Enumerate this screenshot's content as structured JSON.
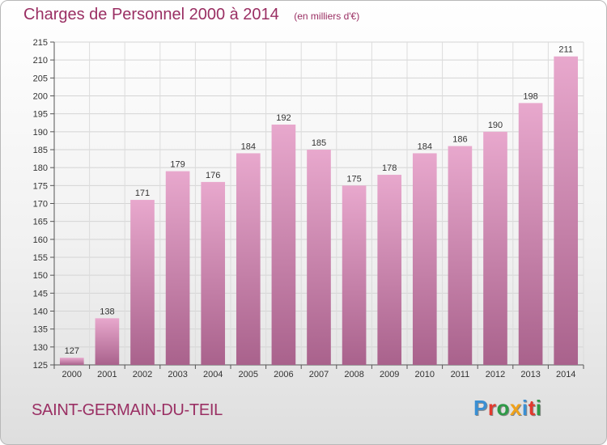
{
  "header": {
    "title": "Charges de Personnel 2000 à 2014",
    "unit": "(en milliers d'€)"
  },
  "commune": "SAINT-GERMAIN-DU-TEIL",
  "brand": {
    "text": "Proxiti",
    "letter_colors": [
      "#3a8fd3",
      "#e23a2e",
      "#2e9a47",
      "#f0a21a",
      "#3a8fd3",
      "#e23a2e",
      "#2e9a47"
    ]
  },
  "colors": {
    "accent": "#9a2f63",
    "bar_top": "#e8a8cd",
    "bar_bottom": "#a9628c"
  },
  "chart_data": {
    "type": "bar",
    "title": "Charges de Personnel 2000 à 2014",
    "subtitle": "(en milliers d'€)",
    "categories": [
      "2000",
      "2001",
      "2002",
      "2003",
      "2004",
      "2005",
      "2006",
      "2007",
      "2008",
      "2009",
      "2010",
      "2011",
      "2012",
      "2013",
      "2014"
    ],
    "values": [
      127,
      138,
      171,
      179,
      176,
      184,
      192,
      185,
      175,
      178,
      184,
      186,
      190,
      198,
      211
    ],
    "value_labels": [
      "127",
      "138",
      "171",
      "179",
      "176",
      "184",
      "192",
      "185",
      "175",
      "178",
      "184",
      "186",
      "190",
      "198",
      "211"
    ],
    "ylim": [
      125,
      215
    ],
    "yticks": [
      125,
      130,
      135,
      140,
      145,
      150,
      155,
      160,
      165,
      170,
      175,
      180,
      185,
      190,
      195,
      200,
      205,
      210,
      215
    ],
    "ytick_labels": [
      "125",
      "130",
      "135",
      "140",
      "145",
      "150",
      "155",
      "160",
      "165",
      "170",
      "175",
      "180",
      "185",
      "190",
      "195",
      "200",
      "205",
      "210",
      "215"
    ],
    "grid": true,
    "xlabel": "",
    "ylabel": ""
  }
}
